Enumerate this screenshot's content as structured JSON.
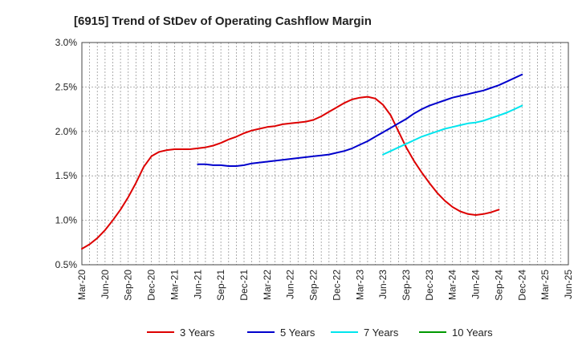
{
  "chart_data": {
    "type": "line",
    "title": "[6915]  Trend of StDev of Operating Cashflow Margin",
    "xlabel": "",
    "ylabel": "",
    "ylim": [
      0.5,
      3.0
    ],
    "y_unit": "%",
    "y_ticks": [
      "0.5%",
      "1.0%",
      "1.5%",
      "2.0%",
      "2.5%",
      "3.0%"
    ],
    "x_ticks": [
      "Mar-20",
      "Jun-20",
      "Sep-20",
      "Dec-20",
      "Mar-21",
      "Jun-21",
      "Sep-21",
      "Dec-21",
      "Mar-22",
      "Jun-22",
      "Sep-22",
      "Dec-22",
      "Mar-23",
      "Jun-23",
      "Sep-23",
      "Dec-23",
      "Mar-24",
      "Jun-24",
      "Sep-24",
      "Dec-24",
      "Mar-25",
      "Jun-25"
    ],
    "x_range": [
      "Mar-20",
      "Jun-25"
    ],
    "grid": true,
    "legend_position": "bottom",
    "series": [
      {
        "name": "3 Years",
        "color": "#dd0000",
        "points": [
          [
            "Mar-20",
            0.68
          ],
          [
            "Apr-20",
            0.73
          ],
          [
            "May-20",
            0.8
          ],
          [
            "Jun-20",
            0.89
          ],
          [
            "Jul-20",
            1.0
          ],
          [
            "Aug-20",
            1.12
          ],
          [
            "Sep-20",
            1.26
          ],
          [
            "Oct-20",
            1.42
          ],
          [
            "Nov-20",
            1.6
          ],
          [
            "Dec-20",
            1.72
          ],
          [
            "Jan-21",
            1.77
          ],
          [
            "Feb-21",
            1.79
          ],
          [
            "Mar-21",
            1.8
          ],
          [
            "Apr-21",
            1.8
          ],
          [
            "May-21",
            1.8
          ],
          [
            "Jun-21",
            1.81
          ],
          [
            "Jul-21",
            1.82
          ],
          [
            "Aug-21",
            1.84
          ],
          [
            "Sep-21",
            1.87
          ],
          [
            "Oct-21",
            1.91
          ],
          [
            "Nov-21",
            1.94
          ],
          [
            "Dec-21",
            1.98
          ],
          [
            "Jan-22",
            2.01
          ],
          [
            "Feb-22",
            2.03
          ],
          [
            "Mar-22",
            2.05
          ],
          [
            "Apr-22",
            2.06
          ],
          [
            "May-22",
            2.08
          ],
          [
            "Jun-22",
            2.09
          ],
          [
            "Jul-22",
            2.1
          ],
          [
            "Aug-22",
            2.11
          ],
          [
            "Sep-22",
            2.13
          ],
          [
            "Oct-22",
            2.17
          ],
          [
            "Nov-22",
            2.22
          ],
          [
            "Dec-22",
            2.27
          ],
          [
            "Jan-23",
            2.32
          ],
          [
            "Feb-23",
            2.36
          ],
          [
            "Mar-23",
            2.38
          ],
          [
            "Apr-23",
            2.39
          ],
          [
            "May-23",
            2.37
          ],
          [
            "Jun-23",
            2.3
          ],
          [
            "Jul-23",
            2.18
          ],
          [
            "Aug-23",
            2.0
          ],
          [
            "Sep-23",
            1.82
          ],
          [
            "Oct-23",
            1.67
          ],
          [
            "Nov-23",
            1.54
          ],
          [
            "Dec-23",
            1.42
          ],
          [
            "Jan-24",
            1.31
          ],
          [
            "Feb-24",
            1.22
          ],
          [
            "Mar-24",
            1.15
          ],
          [
            "Apr-24",
            1.1
          ],
          [
            "May-24",
            1.07
          ],
          [
            "Jun-24",
            1.06
          ],
          [
            "Jul-24",
            1.07
          ],
          [
            "Aug-24",
            1.09
          ],
          [
            "Sep-24",
            1.12
          ]
        ]
      },
      {
        "name": "5 Years",
        "color": "#0000cc",
        "points": [
          [
            "Jun-21",
            1.63
          ],
          [
            "Jul-21",
            1.63
          ],
          [
            "Aug-21",
            1.62
          ],
          [
            "Sep-21",
            1.62
          ],
          [
            "Oct-21",
            1.61
          ],
          [
            "Nov-21",
            1.61
          ],
          [
            "Dec-21",
            1.62
          ],
          [
            "Jan-22",
            1.64
          ],
          [
            "Feb-22",
            1.65
          ],
          [
            "Mar-22",
            1.66
          ],
          [
            "Apr-22",
            1.67
          ],
          [
            "May-22",
            1.68
          ],
          [
            "Jun-22",
            1.69
          ],
          [
            "Jul-22",
            1.7
          ],
          [
            "Aug-22",
            1.71
          ],
          [
            "Sep-22",
            1.72
          ],
          [
            "Oct-22",
            1.73
          ],
          [
            "Nov-22",
            1.74
          ],
          [
            "Dec-22",
            1.76
          ],
          [
            "Jan-23",
            1.78
          ],
          [
            "Feb-23",
            1.81
          ],
          [
            "Mar-23",
            1.85
          ],
          [
            "Apr-23",
            1.89
          ],
          [
            "May-23",
            1.94
          ],
          [
            "Jun-23",
            1.99
          ],
          [
            "Jul-23",
            2.04
          ],
          [
            "Aug-23",
            2.09
          ],
          [
            "Sep-23",
            2.14
          ],
          [
            "Oct-23",
            2.2
          ],
          [
            "Nov-23",
            2.25
          ],
          [
            "Dec-23",
            2.29
          ],
          [
            "Jan-24",
            2.32
          ],
          [
            "Feb-24",
            2.35
          ],
          [
            "Mar-24",
            2.38
          ],
          [
            "Apr-24",
            2.4
          ],
          [
            "May-24",
            2.42
          ],
          [
            "Jun-24",
            2.44
          ],
          [
            "Jul-24",
            2.46
          ],
          [
            "Aug-24",
            2.49
          ],
          [
            "Sep-24",
            2.52
          ],
          [
            "Oct-24",
            2.56
          ],
          [
            "Nov-24",
            2.6
          ],
          [
            "Dec-24",
            2.64
          ]
        ]
      },
      {
        "name": "7 Years",
        "color": "#00e5ee",
        "points": [
          [
            "Jun-23",
            1.74
          ],
          [
            "Jul-23",
            1.78
          ],
          [
            "Aug-23",
            1.82
          ],
          [
            "Sep-23",
            1.86
          ],
          [
            "Oct-23",
            1.9
          ],
          [
            "Nov-23",
            1.94
          ],
          [
            "Dec-23",
            1.97
          ],
          [
            "Jan-24",
            2.0
          ],
          [
            "Feb-24",
            2.03
          ],
          [
            "Mar-24",
            2.05
          ],
          [
            "Apr-24",
            2.07
          ],
          [
            "May-24",
            2.09
          ],
          [
            "Jun-24",
            2.1
          ],
          [
            "Jul-24",
            2.12
          ],
          [
            "Aug-24",
            2.15
          ],
          [
            "Sep-24",
            2.18
          ],
          [
            "Oct-24",
            2.21
          ],
          [
            "Nov-24",
            2.25
          ],
          [
            "Dec-24",
            2.29
          ]
        ]
      },
      {
        "name": "10 Years",
        "color": "#009900",
        "points": []
      }
    ]
  }
}
